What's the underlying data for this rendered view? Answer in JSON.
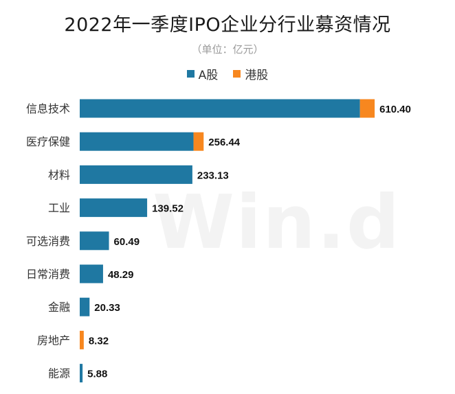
{
  "chart_data": {
    "type": "bar",
    "orientation": "horizontal",
    "stacked": true,
    "title": "2022年一季度IPO企业分行业募资情况",
    "subtitle": "（单位：亿元）",
    "legend_position": "top",
    "categories": [
      "信息技术",
      "医疗保健",
      "材料",
      "工业",
      "可选消费",
      "日常消费",
      "金融",
      "房地产",
      "能源"
    ],
    "totals": [
      "610.40",
      "256.44",
      "233.13",
      "139.52",
      "60.49",
      "48.29",
      "20.33",
      "8.32",
      "5.88"
    ],
    "series": [
      {
        "name": "A股",
        "color": "#1f78a2",
        "values": [
          580.0,
          235.5,
          233.13,
          139.52,
          60.49,
          48.29,
          20.33,
          0,
          5.88
        ]
      },
      {
        "name": "港股",
        "color": "#f7871f",
        "values": [
          30.4,
          20.94,
          0,
          0,
          0,
          0,
          0,
          8.32,
          0
        ]
      }
    ],
    "xlim": [
      0,
      720
    ],
    "grid": false
  },
  "watermark": "Win.d"
}
